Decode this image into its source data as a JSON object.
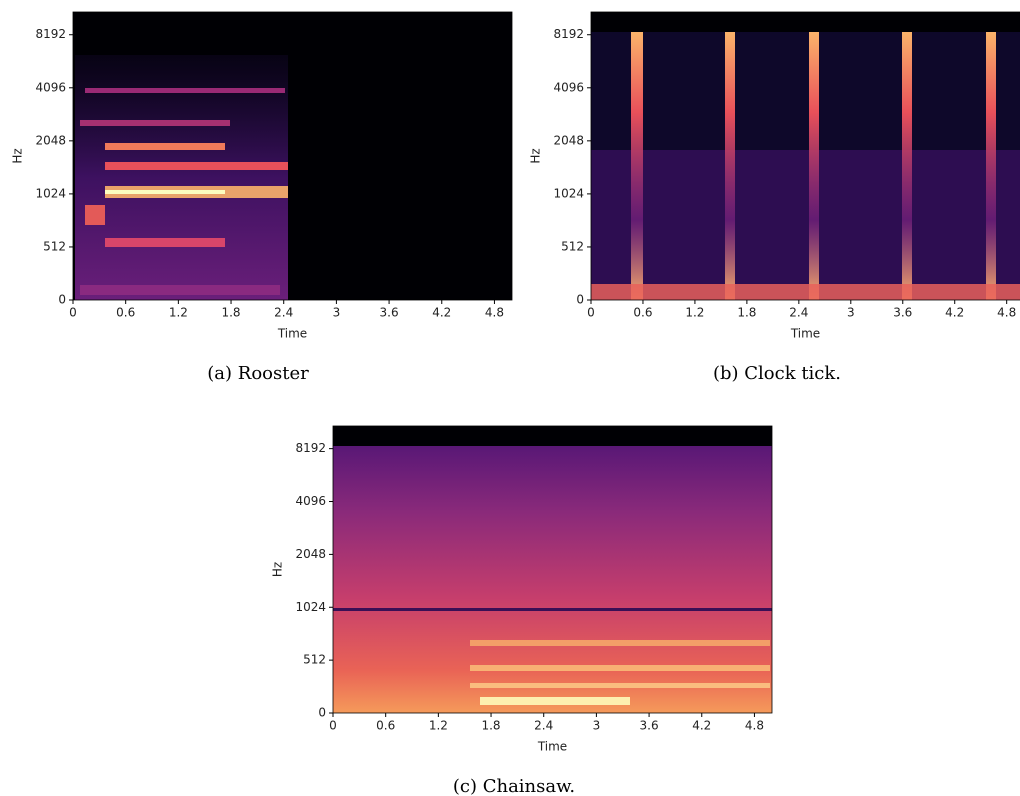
{
  "chart_data": [
    {
      "type": "spectrogram",
      "caption": "(a) Rooster",
      "xlabel": "Time",
      "ylabel": "Hz",
      "xlim": [
        0,
        5
      ],
      "xticks": [
        0,
        0.6,
        1.2,
        1.8,
        2.4,
        3,
        3.6,
        4.2,
        4.8
      ],
      "ylim": [
        0,
        11025
      ],
      "yticks": [
        0,
        512,
        1024,
        2048,
        4096,
        8192
      ],
      "yscale": "symlog",
      "linthresh": 512,
      "base": 2
    },
    {
      "type": "spectrogram",
      "caption": "(b) Clock tick.",
      "xlabel": "Time",
      "ylabel": "Hz",
      "xlim": [
        0,
        5
      ],
      "xticks": [
        0,
        0.6,
        1.2,
        1.8,
        2.4,
        3,
        3.6,
        4.2,
        4.8
      ],
      "ylim": [
        0,
        11025
      ],
      "yticks": [
        0,
        512,
        1024,
        2048,
        4096,
        8192
      ],
      "yscale": "symlog",
      "linthresh": 512,
      "base": 2
    },
    {
      "type": "spectrogram",
      "caption": "(c) Chainsaw.",
      "xlabel": "Time",
      "ylabel": "Hz",
      "xlim": [
        0,
        5
      ],
      "xticks": [
        0,
        0.6,
        1.2,
        1.8,
        2.4,
        3,
        3.6,
        4.2,
        4.8
      ],
      "ylim": [
        0,
        11025
      ],
      "yticks": [
        0,
        512,
        1024,
        2048,
        4096,
        8192
      ],
      "yscale": "symlog",
      "linthresh": 512,
      "base": 2
    }
  ]
}
